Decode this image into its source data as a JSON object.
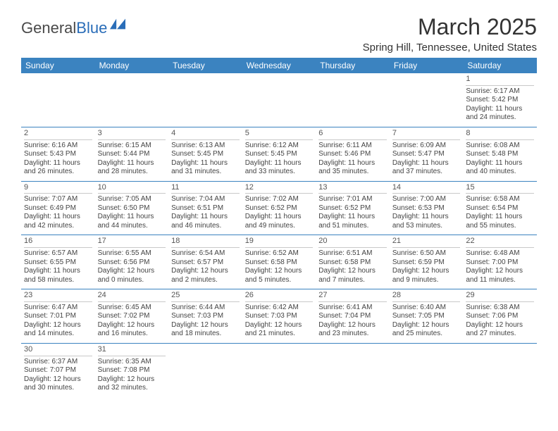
{
  "brand": {
    "part1": "General",
    "part2": "Blue"
  },
  "title": "March 2025",
  "location": "Spring Hill, Tennessee, United States",
  "colors": {
    "header_bg": "#3b83c0",
    "header_text": "#ffffff",
    "border": "#3b83c0",
    "daynum_border": "#c9c9c9",
    "text": "#444444",
    "logo_blue": "#2a6db8"
  },
  "fonts": {
    "title_size_pt": 24,
    "location_size_pt": 11,
    "header_size_pt": 9,
    "cell_size_pt": 7
  },
  "weekdays": [
    "Sunday",
    "Monday",
    "Tuesday",
    "Wednesday",
    "Thursday",
    "Friday",
    "Saturday"
  ],
  "grid": {
    "first_weekday_index": 6,
    "num_days": 31
  },
  "days": {
    "1": {
      "sunrise": "6:17 AM",
      "sunset": "5:42 PM",
      "daylight": "11 hours and 24 minutes."
    },
    "2": {
      "sunrise": "6:16 AM",
      "sunset": "5:43 PM",
      "daylight": "11 hours and 26 minutes."
    },
    "3": {
      "sunrise": "6:15 AM",
      "sunset": "5:44 PM",
      "daylight": "11 hours and 28 minutes."
    },
    "4": {
      "sunrise": "6:13 AM",
      "sunset": "5:45 PM",
      "daylight": "11 hours and 31 minutes."
    },
    "5": {
      "sunrise": "6:12 AM",
      "sunset": "5:45 PM",
      "daylight": "11 hours and 33 minutes."
    },
    "6": {
      "sunrise": "6:11 AM",
      "sunset": "5:46 PM",
      "daylight": "11 hours and 35 minutes."
    },
    "7": {
      "sunrise": "6:09 AM",
      "sunset": "5:47 PM",
      "daylight": "11 hours and 37 minutes."
    },
    "8": {
      "sunrise": "6:08 AM",
      "sunset": "5:48 PM",
      "daylight": "11 hours and 40 minutes."
    },
    "9": {
      "sunrise": "7:07 AM",
      "sunset": "6:49 PM",
      "daylight": "11 hours and 42 minutes."
    },
    "10": {
      "sunrise": "7:05 AM",
      "sunset": "6:50 PM",
      "daylight": "11 hours and 44 minutes."
    },
    "11": {
      "sunrise": "7:04 AM",
      "sunset": "6:51 PM",
      "daylight": "11 hours and 46 minutes."
    },
    "12": {
      "sunrise": "7:02 AM",
      "sunset": "6:52 PM",
      "daylight": "11 hours and 49 minutes."
    },
    "13": {
      "sunrise": "7:01 AM",
      "sunset": "6:52 PM",
      "daylight": "11 hours and 51 minutes."
    },
    "14": {
      "sunrise": "7:00 AM",
      "sunset": "6:53 PM",
      "daylight": "11 hours and 53 minutes."
    },
    "15": {
      "sunrise": "6:58 AM",
      "sunset": "6:54 PM",
      "daylight": "11 hours and 55 minutes."
    },
    "16": {
      "sunrise": "6:57 AM",
      "sunset": "6:55 PM",
      "daylight": "11 hours and 58 minutes."
    },
    "17": {
      "sunrise": "6:55 AM",
      "sunset": "6:56 PM",
      "daylight": "12 hours and 0 minutes."
    },
    "18": {
      "sunrise": "6:54 AM",
      "sunset": "6:57 PM",
      "daylight": "12 hours and 2 minutes."
    },
    "19": {
      "sunrise": "6:52 AM",
      "sunset": "6:58 PM",
      "daylight": "12 hours and 5 minutes."
    },
    "20": {
      "sunrise": "6:51 AM",
      "sunset": "6:58 PM",
      "daylight": "12 hours and 7 minutes."
    },
    "21": {
      "sunrise": "6:50 AM",
      "sunset": "6:59 PM",
      "daylight": "12 hours and 9 minutes."
    },
    "22": {
      "sunrise": "6:48 AM",
      "sunset": "7:00 PM",
      "daylight": "12 hours and 11 minutes."
    },
    "23": {
      "sunrise": "6:47 AM",
      "sunset": "7:01 PM",
      "daylight": "12 hours and 14 minutes."
    },
    "24": {
      "sunrise": "6:45 AM",
      "sunset": "7:02 PM",
      "daylight": "12 hours and 16 minutes."
    },
    "25": {
      "sunrise": "6:44 AM",
      "sunset": "7:03 PM",
      "daylight": "12 hours and 18 minutes."
    },
    "26": {
      "sunrise": "6:42 AM",
      "sunset": "7:03 PM",
      "daylight": "12 hours and 21 minutes."
    },
    "27": {
      "sunrise": "6:41 AM",
      "sunset": "7:04 PM",
      "daylight": "12 hours and 23 minutes."
    },
    "28": {
      "sunrise": "6:40 AM",
      "sunset": "7:05 PM",
      "daylight": "12 hours and 25 minutes."
    },
    "29": {
      "sunrise": "6:38 AM",
      "sunset": "7:06 PM",
      "daylight": "12 hours and 27 minutes."
    },
    "30": {
      "sunrise": "6:37 AM",
      "sunset": "7:07 PM",
      "daylight": "12 hours and 30 minutes."
    },
    "31": {
      "sunrise": "6:35 AM",
      "sunset": "7:08 PM",
      "daylight": "12 hours and 32 minutes."
    }
  },
  "labels": {
    "sunrise_prefix": "Sunrise: ",
    "sunset_prefix": "Sunset: ",
    "daylight_prefix": "Daylight: "
  }
}
